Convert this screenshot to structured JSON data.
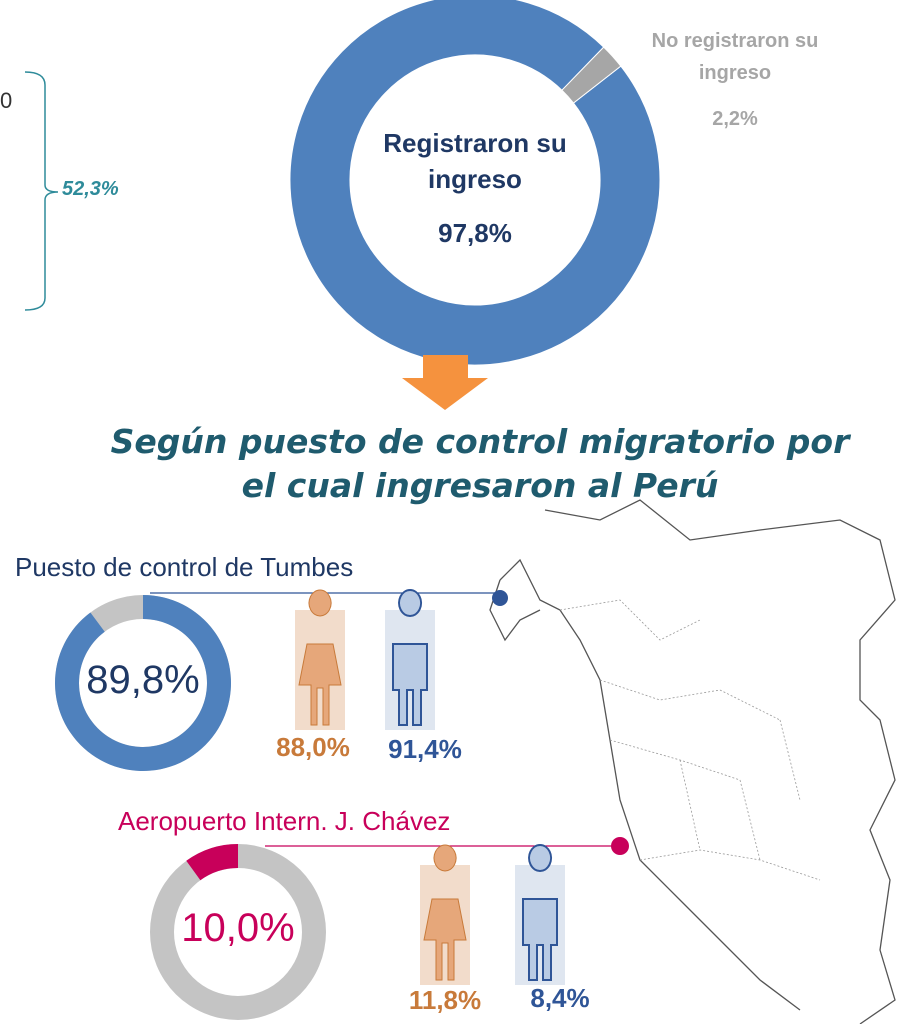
{
  "chart_data": [
    {
      "type": "pie",
      "categories": [
        "Registraron su ingreso",
        "No registraron su ingreso"
      ],
      "values": [
        97.8,
        2.2
      ],
      "value_labels": [
        "97,8%",
        "2,2%"
      ],
      "colors": [
        "#4f81bd",
        "#a6a6a6"
      ]
    },
    {
      "type": "pie",
      "title": "Puesto de control de Tumbes",
      "values": [
        89.8
      ],
      "value_labels": [
        "89,8%"
      ],
      "color": "#4f81bd",
      "rest_color": "#c4c4c4",
      "by_sex": {
        "values": [
          88.0,
          91.4
        ],
        "value_labels": [
          "88,0%",
          "91,4%"
        ],
        "colors": [
          "#c87a3a",
          "#2f5597"
        ]
      }
    },
    {
      "type": "pie",
      "title": "Aeropuerto Intern. J. Chávez",
      "values": [
        10.0
      ],
      "value_labels": [
        "10,0%"
      ],
      "color": "#c8005a",
      "rest_color": "#c4c4c4",
      "by_sex": {
        "values": [
          11.8,
          8.4
        ],
        "value_labels": [
          "11,8%",
          "8,4%"
        ],
        "colors": [
          "#c87a3a",
          "#2f5597"
        ]
      }
    }
  ],
  "heading": "Según puesto de control migratorio por el cual ingresaron al Perú",
  "left_fragment": "0",
  "bracket_label": "52,3%"
}
